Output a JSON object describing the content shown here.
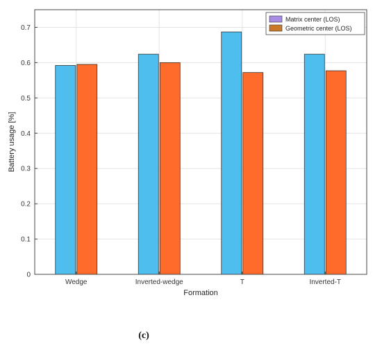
{
  "chart_data": {
    "type": "bar",
    "title": "",
    "xlabel": "Formation",
    "ylabel": "Battery usage [%]",
    "categories": [
      "Wedge",
      "Inverted-wedge",
      "T",
      "Inverted-T"
    ],
    "series": [
      {
        "name": "Matrix center (LOS)",
        "values": [
          0.592,
          0.624,
          0.687,
          0.624
        ],
        "color": "#4DBEEE"
      },
      {
        "name": "Geometric center (LOS)",
        "values": [
          0.595,
          0.6,
          0.572,
          0.577
        ],
        "color": "#FF6B2B"
      }
    ],
    "ylim": [
      0,
      0.75
    ],
    "yticks": [
      0,
      0.1,
      0.2,
      0.3,
      0.4,
      0.5,
      0.6,
      0.7
    ],
    "ytick_labels": [
      "0",
      "0.1",
      "0.2",
      "0.3",
      "0.4",
      "0.5",
      "0.6",
      "0.7"
    ],
    "grid": true,
    "legend": {
      "placement": "top-right",
      "entries": [
        "Matrix center (LOS)",
        "Geometric center (LOS)"
      ],
      "swatch_colors": [
        "#A98CE6",
        "#C9782A"
      ]
    }
  },
  "caption": "(c)"
}
